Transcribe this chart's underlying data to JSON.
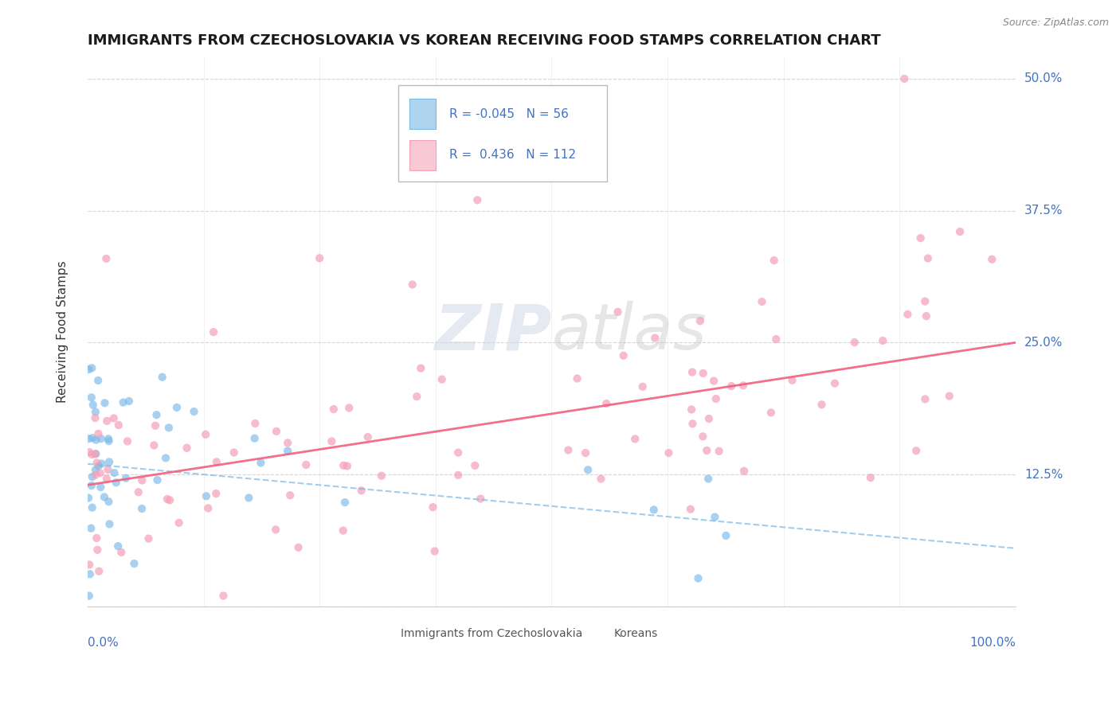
{
  "title": "IMMIGRANTS FROM CZECHOSLOVAKIA VS KOREAN RECEIVING FOOD STAMPS CORRELATION CHART",
  "source": "Source: ZipAtlas.com",
  "ylabel": "Receiving Food Stamps",
  "legend_label1": "Immigrants from Czechoslovakia",
  "legend_label2": "Koreans",
  "R1": -0.045,
  "N1": 56,
  "R2": 0.436,
  "N2": 112,
  "color_czech": "#7ab8e8",
  "color_korean": "#f4a0b5",
  "color_czech_line": "#7ab8e8",
  "color_korean_line": "#f06080",
  "watermark": "ZIPatlas",
  "background": "#ffffff",
  "ytick_vals": [
    0.0,
    0.125,
    0.25,
    0.375,
    0.5
  ],
  "ytick_labels": [
    "",
    "12.5%",
    "25.0%",
    "37.5%",
    "50.0%"
  ],
  "xmin": 0.0,
  "xmax": 100.0,
  "ymin": 0.0,
  "ymax": 0.52
}
